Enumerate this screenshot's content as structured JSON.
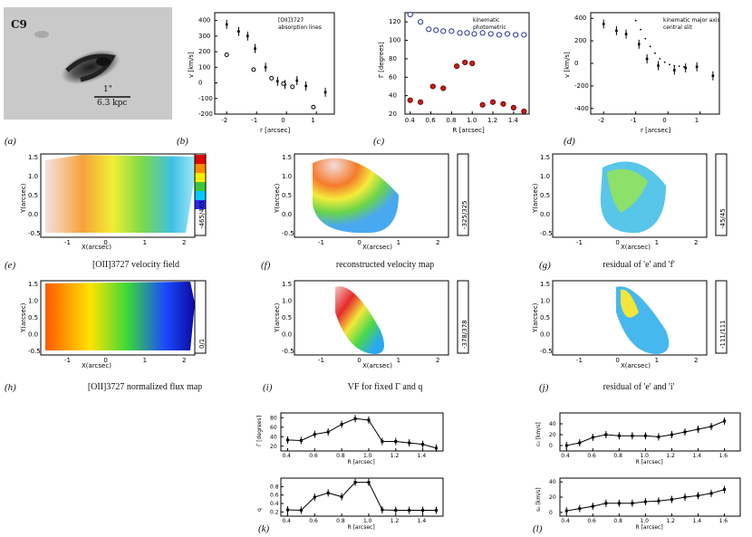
{
  "panel_labels": [
    "(a)",
    "(b)",
    "(c)",
    "(d)",
    "(e)",
    "(f)",
    "(g)",
    "(h)",
    "(i)",
    "(j)",
    "(k)",
    "(l)"
  ],
  "galaxy": {
    "name": "C9",
    "scale_arcsec": "1\"",
    "scale_kpc": "6.3 kpc"
  },
  "captions": {
    "e": "[OII]3727 velocity field",
    "f": "reconstructed velocity map",
    "g": "residual of 'e' and 'f'",
    "h": "[OII]3727 normalized flux map",
    "i": "VF for fixed Γ and q",
    "j": "residual of 'e' and 'i'"
  },
  "maps": {
    "e": {
      "xlabel": "X(arcsec)",
      "ylabel": "Y(arcsec)",
      "range": "-465/465"
    },
    "f": {
      "xlabel": "X(arcsec)",
      "ylabel": "Y(arcsec)",
      "range": "-325/325"
    },
    "g": {
      "xlabel": "X(arcsec)",
      "ylabel": "Y(arcsec)",
      "range": "-45/45"
    },
    "h": {
      "xlabel": "X(arcsec)",
      "ylabel": "Y(arcsec)",
      "range": "0/1"
    },
    "i": {
      "xlabel": "X(arcsec)",
      "ylabel": "Y(arcsec)",
      "range": "-378/378"
    },
    "j": {
      "xlabel": "X(arcsec)",
      "ylabel": "Y(arcsec)",
      "range": "-111/111"
    },
    "xticks": [
      "-1",
      "0",
      "1",
      "2"
    ],
    "yticks": [
      "-0.5",
      "0.0",
      "0.5",
      "1.0",
      "1.5"
    ]
  },
  "chart_data": [
    {
      "id": "b",
      "type": "scatter",
      "xlabel": "r [arcsec]",
      "ylabel": "v [km/s]",
      "xlim": [
        -2.4,
        1.6
      ],
      "ylim": [
        -200,
        450
      ],
      "xticks": [
        "-2",
        "-1",
        "0",
        "1"
      ],
      "yticks": [
        "400",
        "300",
        "200",
        "100",
        "0",
        "-100",
        "-200"
      ],
      "legend": [
        "[OII]3727",
        "absorption lines"
      ],
      "series": [
        {
          "name": "[OII]3727",
          "x": [
            -2.0,
            -1.6,
            -1.3,
            -1.05,
            -0.7,
            -0.3,
            -0.05,
            0.35,
            0.65,
            1.3
          ],
          "y": [
            375,
            330,
            300,
            220,
            100,
            10,
            -10,
            15,
            -20,
            -60
          ]
        },
        {
          "name": "absorption lines",
          "x": [
            -2.0,
            -1.1,
            -0.5,
            -0.1,
            0.2,
            0.9
          ],
          "y": [
            180,
            85,
            30,
            -5,
            -25,
            -155
          ]
        }
      ]
    },
    {
      "id": "c",
      "type": "scatter",
      "xlabel": "R [arcsec]",
      "ylabel": "Γ [degrees]",
      "xlim": [
        0.35,
        1.55
      ],
      "ylim": [
        20,
        130
      ],
      "xticks": [
        "0.4",
        "0.6",
        "0.8",
        "1.0",
        "1.2",
        "1.4"
      ],
      "yticks": [
        "120",
        "100",
        "80",
        "60",
        "40",
        "20"
      ],
      "legend": [
        "kinematic",
        "photometric"
      ],
      "series": [
        {
          "name": "kinematic",
          "x": [
            0.4,
            0.5,
            0.62,
            0.72,
            0.85,
            0.93,
            1.0,
            1.1,
            1.2,
            1.3,
            1.4,
            1.5
          ],
          "y": [
            35,
            33,
            50,
            48,
            72,
            76,
            75,
            30,
            33,
            31,
            27,
            23
          ]
        },
        {
          "name": "photometric",
          "x": [
            0.4,
            0.5,
            0.58,
            0.65,
            0.72,
            0.8,
            0.88,
            0.95,
            1.02,
            1.1,
            1.18,
            1.26,
            1.34,
            1.42,
            1.5
          ],
          "y": [
            128,
            120,
            112,
            111,
            110,
            110,
            108,
            108,
            107,
            108,
            107,
            106,
            107,
            106,
            106
          ]
        }
      ]
    },
    {
      "id": "d",
      "type": "scatter",
      "xlabel": "r [arcsec]",
      "ylabel": "v [km/s]",
      "xlim": [
        -2.4,
        1.6
      ],
      "ylim": [
        -450,
        450
      ],
      "xticks": [
        "-2",
        "-1",
        "0",
        "1"
      ],
      "yticks": [
        "400",
        "200",
        "0",
        "-200",
        "-400"
      ],
      "legend": [
        "kinematic major axis",
        "central slit"
      ],
      "series": [
        {
          "name": "kinematic major axis",
          "x": [
            -2.0,
            -1.6,
            -1.3,
            -0.9,
            -0.65,
            -0.3,
            0.2,
            0.55,
            0.9,
            1.4
          ],
          "y": [
            350,
            290,
            260,
            170,
            40,
            -20,
            -60,
            -40,
            -30,
            -110
          ]
        },
        {
          "name": "central slit",
          "x": [
            -1.0,
            -0.85,
            -0.7,
            -0.55,
            -0.4,
            -0.25,
            -0.1,
            0.05,
            0.2,
            0.35,
            0.5
          ],
          "y": [
            380,
            300,
            220,
            150,
            90,
            40,
            10,
            -10,
            -20,
            -25,
            -30
          ]
        }
      ]
    },
    {
      "id": "k1",
      "type": "line",
      "xlabel": "R [arcsec]",
      "ylabel": "Γ [degrees]",
      "xlim": [
        0.35,
        1.55
      ],
      "ylim": [
        10,
        90
      ],
      "xticks": [
        "0.4",
        "0.6",
        "0.8",
        "1.0",
        "1.2",
        "1.4"
      ],
      "yticks": [
        "80",
        "60",
        "40",
        "20"
      ],
      "x": [
        0.4,
        0.5,
        0.6,
        0.7,
        0.8,
        0.9,
        1.0,
        1.1,
        1.2,
        1.3,
        1.4,
        1.5
      ],
      "y": [
        33,
        32,
        45,
        50,
        66,
        78,
        75,
        30,
        30,
        27,
        24,
        16
      ]
    },
    {
      "id": "k2",
      "type": "line",
      "xlabel": "R [arcsec]",
      "ylabel": "q",
      "xlim": [
        0.35,
        1.55
      ],
      "ylim": [
        0.1,
        1.0
      ],
      "xticks": [
        "0.4",
        "0.6",
        "0.8",
        "1.0",
        "1.2",
        "1.4"
      ],
      "yticks": [
        "0.8",
        "0.6",
        "0.4",
        "0.2"
      ],
      "x": [
        0.4,
        0.5,
        0.6,
        0.7,
        0.8,
        0.9,
        1.0,
        1.1,
        1.2,
        1.3,
        1.4,
        1.5
      ],
      "y": [
        0.25,
        0.24,
        0.55,
        0.65,
        0.56,
        0.9,
        0.9,
        0.25,
        0.24,
        0.24,
        0.24,
        0.24
      ]
    },
    {
      "id": "l1",
      "type": "line",
      "xlabel": "R [arcsec]",
      "ylabel": "c₀ [km/s]",
      "xlim": [
        0.35,
        1.72
      ],
      "ylim": [
        -10,
        60
      ],
      "xticks": [
        "0.4",
        "0.6",
        "0.8",
        "1.0",
        "1.2",
        "1.4",
        "1.6"
      ],
      "yticks": [
        "40",
        "20",
        "0"
      ],
      "x": [
        0.4,
        0.5,
        0.6,
        0.7,
        0.8,
        0.9,
        1.0,
        1.1,
        1.2,
        1.3,
        1.4,
        1.5,
        1.6
      ],
      "y": [
        0,
        5,
        15,
        20,
        18,
        18,
        18,
        16,
        20,
        25,
        30,
        35,
        45
      ]
    },
    {
      "id": "l2",
      "type": "line",
      "xlabel": "R [arcsec]",
      "ylabel": "s₀ [km/s]",
      "xlim": [
        0.35,
        1.72
      ],
      "ylim": [
        -5,
        45
      ],
      "xticks": [
        "0.4",
        "0.6",
        "0.8",
        "1.0",
        "1.2",
        "1.4",
        "1.6"
      ],
      "yticks": [
        "40",
        "20",
        "0"
      ],
      "x": [
        0.4,
        0.5,
        0.6,
        0.7,
        0.8,
        0.9,
        1.0,
        1.1,
        1.2,
        1.3,
        1.4,
        1.5,
        1.6
      ],
      "y": [
        2,
        5,
        8,
        12,
        12,
        12,
        14,
        15,
        17,
        20,
        22,
        25,
        30
      ]
    }
  ]
}
